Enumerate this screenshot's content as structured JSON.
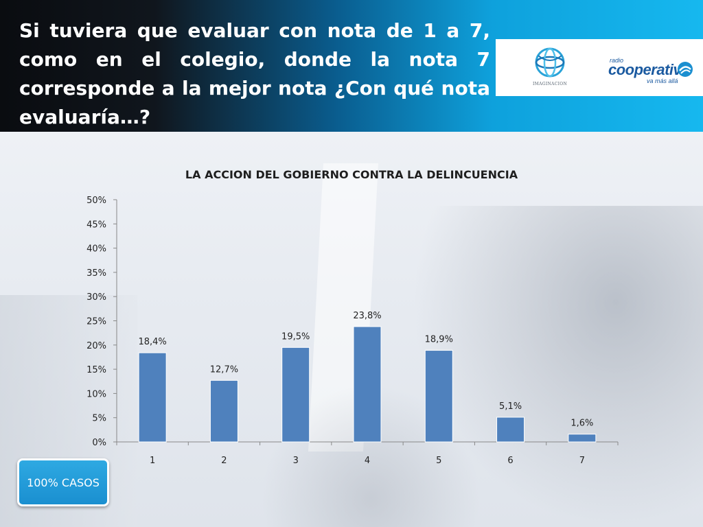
{
  "header": {
    "title": "Si tuviera que evaluar con nota de 1 a 7, como en el colegio, donde la nota 7 corresponde a la mejor nota ¿Con qué nota evaluaría…?"
  },
  "logos": {
    "imaginacion": "IMAGINACION",
    "cooperativa_radio": "radio",
    "cooperativa_name": "cooperativa",
    "cooperativa_tagline": "va más allá"
  },
  "badge": {
    "label": "100% CASOS"
  },
  "colors": {
    "bar": "#4f81bd",
    "header_dark": "#0a0c10",
    "header_light": "#16b8ef",
    "badge": "#1a8fd0"
  },
  "chart_data": {
    "type": "bar",
    "title": "LA ACCION DEL GOBIERNO CONTRA LA DELINCUENCIA",
    "categories": [
      "1",
      "2",
      "3",
      "4",
      "5",
      "6",
      "7"
    ],
    "values": [
      18.4,
      12.7,
      19.5,
      23.8,
      18.9,
      5.1,
      1.6
    ],
    "data_labels": [
      "18,4%",
      "12,7%",
      "19,5%",
      "23,8%",
      "18,9%",
      "5,1%",
      "1,6%"
    ],
    "ylim": [
      0,
      50
    ],
    "y_ticks": [
      "0%",
      "5%",
      "10%",
      "15%",
      "20%",
      "25%",
      "30%",
      "35%",
      "40%",
      "45%",
      "50%"
    ],
    "grid": false,
    "legend": "none",
    "xlabel": "",
    "ylabel": ""
  }
}
